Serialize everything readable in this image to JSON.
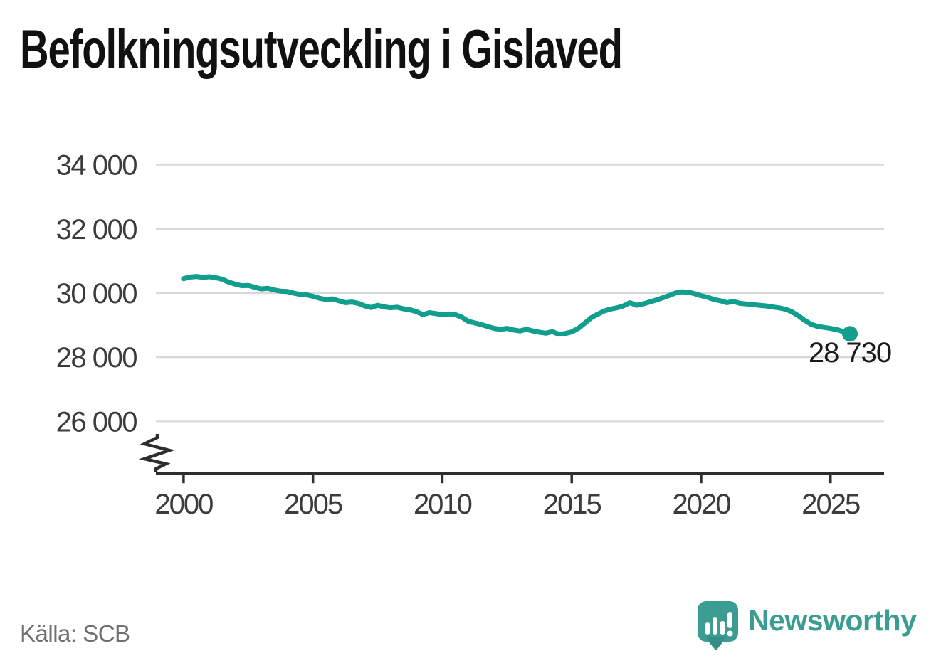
{
  "title": "Befolkningsutveckling i Gislaved",
  "source": "Källa: SCB",
  "branding": {
    "name": "Newsworthy",
    "icon": "newsworthy-logo-icon",
    "wordmark_color": "#3B9C92"
  },
  "colors": {
    "line": "#119E8D",
    "grid": "#D8D8D8",
    "axis": "#2E2E2E",
    "tick_text": "#3B3B3B",
    "end_label_text": "#1A1A1A",
    "title_text": "#111111",
    "source_text": "#707070"
  },
  "chart_data": {
    "type": "line",
    "title": "Befolkningsutveckling i Gislaved",
    "series_name": "Befolkning i Gislaved kommun",
    "xlabel": "",
    "ylabel": "",
    "grid": "horizontal",
    "legend": "none",
    "axis_break": true,
    "xlim": [
      1998.93,
      2027.07
    ],
    "ylim": [
      26000,
      34000
    ],
    "xticks": [
      2000,
      2005,
      2010,
      2015,
      2020,
      2025
    ],
    "xtick_labels": [
      "2000",
      "2005",
      "2010",
      "2015",
      "2020",
      "2025"
    ],
    "yticks": [
      26000,
      28000,
      30000,
      32000,
      34000
    ],
    "ytick_labels": [
      "26 000",
      "28 000",
      "30 000",
      "32 000",
      "34 000"
    ],
    "end_label": "28 730",
    "end_point": {
      "x": 2025.75,
      "y": 28730
    },
    "x": [
      2000.0,
      2000.25,
      2000.5,
      2000.75,
      2001.0,
      2001.25,
      2001.5,
      2001.75,
      2002.0,
      2002.25,
      2002.5,
      2002.75,
      2003.0,
      2003.25,
      2003.5,
      2003.75,
      2004.0,
      2004.25,
      2004.5,
      2004.75,
      2005.0,
      2005.25,
      2005.5,
      2005.75,
      2006.0,
      2006.25,
      2006.5,
      2006.75,
      2007.0,
      2007.25,
      2007.5,
      2007.75,
      2008.0,
      2008.25,
      2008.5,
      2008.75,
      2009.0,
      2009.25,
      2009.5,
      2009.75,
      2010.0,
      2010.25,
      2010.5,
      2010.75,
      2011.0,
      2011.25,
      2011.5,
      2011.75,
      2012.0,
      2012.25,
      2012.5,
      2012.75,
      2013.0,
      2013.25,
      2013.5,
      2013.75,
      2014.0,
      2014.25,
      2014.5,
      2014.75,
      2015.0,
      2015.25,
      2015.5,
      2015.75,
      2016.0,
      2016.25,
      2016.5,
      2016.75,
      2017.0,
      2017.25,
      2017.5,
      2017.75,
      2018.0,
      2018.25,
      2018.5,
      2018.75,
      2019.0,
      2019.25,
      2019.5,
      2019.75,
      2020.0,
      2020.25,
      2020.5,
      2020.75,
      2021.0,
      2021.25,
      2021.5,
      2021.75,
      2022.0,
      2022.25,
      2022.5,
      2022.75,
      2023.0,
      2023.25,
      2023.5,
      2023.75,
      2024.0,
      2024.25,
      2024.5,
      2024.75,
      2025.0,
      2025.25,
      2025.5,
      2025.75
    ],
    "y": [
      30450,
      30500,
      30520,
      30490,
      30510,
      30480,
      30430,
      30340,
      30280,
      30230,
      30240,
      30180,
      30130,
      30150,
      30100,
      30060,
      30050,
      30000,
      29960,
      29950,
      29900,
      29840,
      29800,
      29820,
      29760,
      29700,
      29720,
      29680,
      29600,
      29550,
      29620,
      29570,
      29540,
      29560,
      29510,
      29480,
      29420,
      29330,
      29390,
      29360,
      29330,
      29350,
      29330,
      29250,
      29120,
      29070,
      29020,
      28960,
      28900,
      28870,
      28900,
      28850,
      28820,
      28870,
      28820,
      28780,
      28750,
      28800,
      28720,
      28740,
      28790,
      28900,
      29060,
      29230,
      29340,
      29440,
      29500,
      29540,
      29600,
      29700,
      29620,
      29660,
      29720,
      29780,
      29850,
      29920,
      30000,
      30040,
      30030,
      29980,
      29920,
      29870,
      29800,
      29760,
      29700,
      29740,
      29680,
      29660,
      29640,
      29620,
      29600,
      29570,
      29540,
      29500,
      29420,
      29300,
      29150,
      29030,
      28960,
      28930,
      28900,
      28860,
      28800,
      28730
    ]
  }
}
